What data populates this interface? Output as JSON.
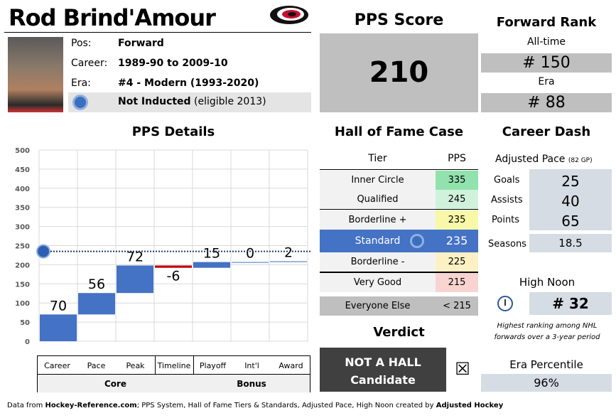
{
  "player": {
    "name": "Rod Brind'Amour",
    "pos_label": "Pos:",
    "pos": "Forward",
    "career_label": "Career:",
    "career": "1989-90 to 2009-10",
    "era_label": "Era:",
    "era": "#4 - Modern (1993-2020)",
    "hof_status": "Not Inducted",
    "hof_eligible": "(eligible 2013)"
  },
  "pps": {
    "title": "PPS Score",
    "score": "210"
  },
  "rank": {
    "title": "Forward Rank",
    "alltime_label": "All-time",
    "alltime": "# 150",
    "era_label": "Era",
    "era": "# 88"
  },
  "details": {
    "title": "PPS Details",
    "core_label": "Core",
    "bonus_label": "Bonus"
  },
  "chart_data": {
    "type": "waterfall",
    "title": "PPS Details",
    "categories": [
      "Career",
      "Pace",
      "Peak",
      "Timeline",
      "Playoff",
      "Int'l",
      "Award"
    ],
    "values": [
      70,
      56,
      72,
      -6,
      15,
      0,
      2
    ],
    "ylim": [
      0,
      500
    ],
    "yticks": [
      "0",
      "50",
      "100",
      "150",
      "200",
      "250",
      "300",
      "350",
      "400",
      "450",
      "500"
    ],
    "reference_line": 235,
    "groups": [
      "Core",
      "Bonus"
    ]
  },
  "hof": {
    "title": "Hall of Fame Case",
    "tier_header": "Tier",
    "pps_header": "PPS",
    "tiers": [
      {
        "name": "Inner Circle",
        "pps": "335",
        "color": "#92e2ad"
      },
      {
        "name": "Qualified",
        "pps": "245",
        "color": "#d0f2dc"
      },
      {
        "name": "Borderline +",
        "pps": "235",
        "color": "#f8f8a8"
      },
      {
        "name": "Standard",
        "pps": "235",
        "color": "#4472c4"
      },
      {
        "name": "Borderline -",
        "pps": "225",
        "color": "#fdf0c4"
      },
      {
        "name": "Very Good",
        "pps": "215",
        "color": "#f8d4d0"
      },
      {
        "name": "Everyone Else",
        "pps": "< 215",
        "color": "#bfbfbf"
      }
    ],
    "verdict_title": "Verdict",
    "verdict_line1": "NOT A HALL",
    "verdict_line2": "Candidate",
    "checkbox": "☒"
  },
  "career_dash": {
    "title": "Career Dash",
    "pace_title": "Adjusted Pace",
    "pace_sub": "(82 GP)",
    "goals_label": "Goals",
    "goals": "25",
    "assists_label": "Assists",
    "assists": "40",
    "points_label": "Points",
    "points": "65",
    "seasons_label": "Seasons",
    "seasons": "18.5",
    "high_noon_title": "High Noon",
    "high_noon": "# 32",
    "high_noon_note": "Highest ranking among NHL forwards over a 3-year period",
    "era_pct_title": "Era Percentile",
    "era_pct": "96%"
  },
  "footer": {
    "t1": "Data from ",
    "b1": "Hockey-Reference.com",
    "t2": "; PPS System, Hall of Fame Tiers & Standards, Adjusted Pace, High Noon created by ",
    "b2": "Adjusted Hockey"
  }
}
